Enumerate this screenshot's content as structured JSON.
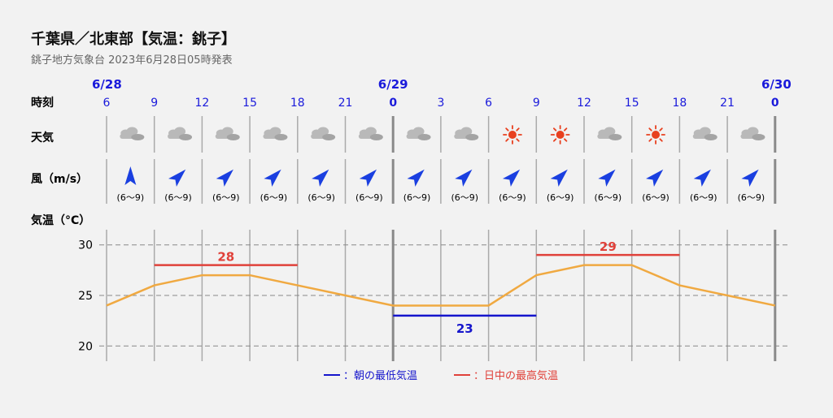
{
  "title": "千葉県／北東部【気温：銚子】",
  "subtitle": "銚子地方気象台 2023年6月28日05時発表",
  "row_labels": {
    "time": "時刻",
    "weather": "天気",
    "wind": "風（m/s）",
    "temp": "気温（°C）"
  },
  "dates": [
    {
      "label": "6/28",
      "col": 0
    },
    {
      "label": "6/29",
      "col": 6
    },
    {
      "label": "6/30",
      "col": 14
    }
  ],
  "hours": [
    "6",
    "9",
    "12",
    "15",
    "18",
    "21",
    "0",
    "3",
    "6",
    "9",
    "12",
    "15",
    "18",
    "21",
    "0"
  ],
  "day_boundary_cols": [
    6,
    14
  ],
  "weather": [
    "cloudy",
    "cloudy",
    "cloudy",
    "cloudy",
    "cloudy",
    "cloudy",
    "cloudy",
    "cloudy",
    "sunny",
    "sunny",
    "cloudy",
    "sunny",
    "cloudy",
    "cloudy"
  ],
  "wind_speed_label": "(6〜9)",
  "wind_direction_deg": [
    0,
    45,
    45,
    45,
    45,
    45,
    45,
    45,
    45,
    45,
    45,
    45,
    45,
    45
  ],
  "colors": {
    "date_blue": "#1a1adb",
    "min_line": "#1515cc",
    "max_line": "#e0413a",
    "temp_line": "#f0a941",
    "sun": "#e8401f",
    "cloud": "#b9b9b9",
    "arrow": "#1a3fe0"
  },
  "legend": {
    "min": "：朝の最低気温",
    "max": "：日中の最高気温"
  },
  "chart_data": {
    "type": "line",
    "x": [
      "6/28 6",
      "9",
      "12",
      "15",
      "18",
      "21",
      "6/29 0",
      "3",
      "6",
      "9",
      "12",
      "15",
      "18",
      "21",
      "6/30 0"
    ],
    "series": [
      {
        "values": [
          24,
          26,
          27,
          27,
          26,
          25,
          24,
          24,
          24,
          27,
          28,
          28,
          26,
          25,
          24
        ]
      }
    ],
    "ylim": [
      18.5,
      31.5
    ],
    "yticks": [
      20,
      25,
      30
    ],
    "grid": true,
    "extremes": [
      {
        "kind": "max",
        "value": 28,
        "from_col": 1,
        "to_col": 4
      },
      {
        "kind": "min",
        "value": 23,
        "from_col": 6,
        "to_col": 9
      },
      {
        "kind": "max",
        "value": 29,
        "from_col": 9,
        "to_col": 12
      }
    ]
  }
}
